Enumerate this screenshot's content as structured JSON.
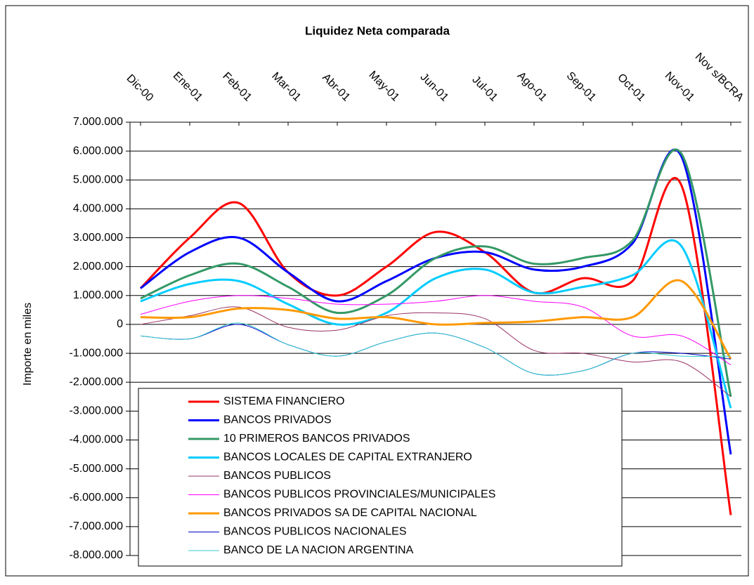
{
  "chart_data": {
    "type": "line",
    "title": "Liquidez Neta comparada",
    "y_label": "Importe en miles",
    "categories": [
      "Dic-00",
      "Ene-01",
      "Feb-01",
      "Mar-01",
      "Abr-01",
      "May-01",
      "Jun-01",
      "Jul-01",
      "Ago-01",
      "Sep-01",
      "Oct-01",
      "Nov-01",
      "Nov s/BCRA"
    ],
    "series": [
      {
        "name": "SISTEMA FINANCIERO",
        "color": "#ff0000",
        "width": 3,
        "values": [
          1250000,
          3000000,
          4200000,
          1800000,
          1000000,
          2000000,
          3200000,
          2500000,
          1100000,
          1600000,
          1500000,
          4800000,
          -6600000
        ]
      },
      {
        "name": "BANCOS PRIVADOS",
        "color": "#0000ff",
        "width": 3,
        "values": [
          1250000,
          2500000,
          3000000,
          1800000,
          800000,
          1500000,
          2300000,
          2500000,
          1900000,
          2000000,
          2800000,
          5800000,
          -4500000
        ]
      },
      {
        "name": "10 PRIMEROS BANCOS PRIVADOS",
        "color": "#339966",
        "width": 3,
        "values": [
          900000,
          1700000,
          2100000,
          1300000,
          400000,
          1000000,
          2300000,
          2700000,
          2100000,
          2300000,
          2900000,
          5900000,
          -2500000
        ]
      },
      {
        "name": "BANCOS LOCALES DE CAPITAL EXTRANJERO",
        "color": "#00ccff",
        "width": 3,
        "values": [
          800000,
          1400000,
          1500000,
          700000,
          0,
          400000,
          1600000,
          1900000,
          1100000,
          1300000,
          1700000,
          2700000,
          -2900000
        ]
      },
      {
        "name": "BANCOS PUBLICOS",
        "color": "#993366",
        "width": 1,
        "values": [
          0,
          300000,
          600000,
          -100000,
          -200000,
          300000,
          400000,
          200000,
          -900000,
          -1000000,
          -1300000,
          -1300000,
          -2500000
        ]
      },
      {
        "name": "BANCOS PUBLICOS PROVINCIALES/MUNICIPALES",
        "color": "#ff00ff",
        "width": 1,
        "values": [
          350000,
          800000,
          1000000,
          900000,
          700000,
          700000,
          800000,
          1000000,
          800000,
          600000,
          -400000,
          -400000,
          -1400000
        ]
      },
      {
        "name": "BANCOS PRIVADOS SA DE CAPITAL NACIONAL",
        "color": "#ff9900",
        "width": 3,
        "values": [
          250000,
          250000,
          550000,
          500000,
          200000,
          250000,
          0,
          50000,
          100000,
          250000,
          250000,
          1500000,
          -1200000
        ]
      },
      {
        "name": "BANCOS PUBLICOS NACIONALES",
        "color": "#0000cc",
        "width": 1,
        "values": [
          -400000,
          -500000,
          0,
          -700000,
          -1100000,
          -600000,
          -300000,
          -800000,
          -1700000,
          -1600000,
          -1000000,
          -1000000,
          -1200000
        ]
      },
      {
        "name": "BANCO DE LA NACION ARGENTINA",
        "color": "#33cccc",
        "width": 1,
        "values": [
          -400000,
          -500000,
          50000,
          -700000,
          -1100000,
          -600000,
          -300000,
          -800000,
          -1700000,
          -1600000,
          -1000000,
          -1100000,
          -1100000
        ]
      }
    ],
    "ylim": [
      -8000000,
      7000000
    ],
    "yticks": [
      {
        "value": 7000000,
        "label": "7.000.000"
      },
      {
        "value": 6000000,
        "label": "6.000.000"
      },
      {
        "value": 5000000,
        "label": "5.000.000"
      },
      {
        "value": 4000000,
        "label": "4.000.000"
      },
      {
        "value": 3000000,
        "label": "3.000.000"
      },
      {
        "value": 2000000,
        "label": "2.000.000"
      },
      {
        "value": 1000000,
        "label": "1.000.000"
      },
      0,
      {
        "value": -1000000,
        "label": "-1.000.000"
      },
      {
        "value": -2000000,
        "label": "-2.000.000"
      },
      {
        "value": -3000000,
        "label": "-3.000.000"
      },
      {
        "value": -4000000,
        "label": "-4.000.000"
      },
      {
        "value": -5000000,
        "label": "-5.000.000"
      },
      {
        "value": -6000000,
        "label": "-6.000.000"
      },
      {
        "value": -7000000,
        "label": "-7.000.000"
      },
      {
        "value": -8000000,
        "label": "-8.000.000"
      }
    ],
    "grid": true
  }
}
